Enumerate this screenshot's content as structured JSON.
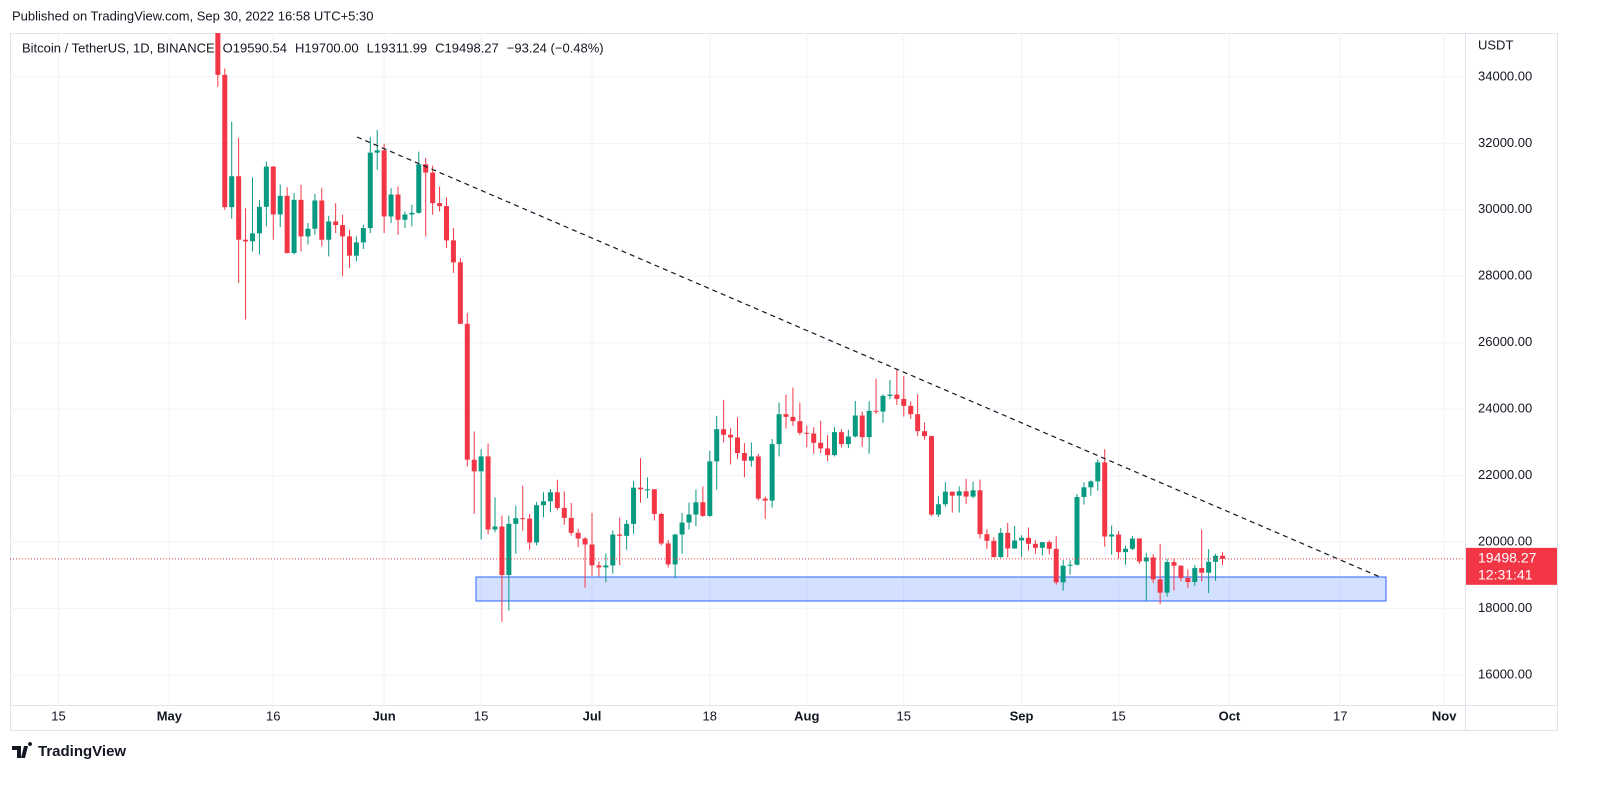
{
  "header": "Published on TradingView.com, Sep 30, 2022 16:58 UTC+5:30",
  "footer": "TradingView",
  "chart_data": {
    "type": "candlestick",
    "legend": {
      "symbol": "Bitcoin / TetherUS, 1D, BINANCE",
      "items": [
        "O",
        "19590.54",
        "H",
        "19700.00",
        "L",
        "19311.99",
        "C",
        "19498.27",
        "−93.24 (−0.48%)"
      ]
    },
    "y_unit": "USDT",
    "countdown": "12:31:41",
    "up_color": "#089981",
    "down_color": "#f23645",
    "xlim": [
      "2022-04-08",
      "2022-11-04"
    ],
    "xticks": [
      {
        "value": "2022-04-15",
        "label": "15"
      },
      {
        "value": "2022-05-01",
        "label": "May"
      },
      {
        "value": "2022-05-16",
        "label": "16"
      },
      {
        "value": "2022-06-01",
        "label": "Jun"
      },
      {
        "value": "2022-06-15",
        "label": "15"
      },
      {
        "value": "2022-07-01",
        "label": "Jul"
      },
      {
        "value": "2022-07-18",
        "label": "18"
      },
      {
        "value": "2022-08-01",
        "label": "Aug"
      },
      {
        "value": "2022-08-15",
        "label": "15"
      },
      {
        "value": "2022-09-01",
        "label": "Sep"
      },
      {
        "value": "2022-09-15",
        "label": "15"
      },
      {
        "value": "2022-10-01",
        "label": "Oct"
      },
      {
        "value": "2022-10-17",
        "label": "17"
      },
      {
        "value": "2022-11-01",
        "label": "Nov"
      }
    ],
    "ylim": [
      15100,
      35320
    ],
    "yticks": [
      {
        "value": 16000,
        "label": "16000.00"
      },
      {
        "value": 18000,
        "label": "18000.00"
      },
      {
        "value": 20000,
        "label": "20000.00"
      },
      {
        "value": 22000,
        "label": "22000.00"
      },
      {
        "value": 24000,
        "label": "24000.00"
      },
      {
        "value": 26000,
        "label": "26000.00"
      },
      {
        "value": 28000,
        "label": "28000.00"
      },
      {
        "value": 30000,
        "label": "30000.00"
      },
      {
        "value": 32000,
        "label": "32000.00"
      },
      {
        "value": 34000,
        "label": "34000.00"
      }
    ],
    "grid": true,
    "x": [
      "2022-05-08",
      "2022-05-09",
      "2022-05-10",
      "2022-05-11",
      "2022-05-12",
      "2022-05-13",
      "2022-05-14",
      "2022-05-15",
      "2022-05-16",
      "2022-05-17",
      "2022-05-18",
      "2022-05-19",
      "2022-05-20",
      "2022-05-21",
      "2022-05-22",
      "2022-05-23",
      "2022-05-24",
      "2022-05-25",
      "2022-05-26",
      "2022-05-27",
      "2022-05-28",
      "2022-05-29",
      "2022-05-30",
      "2022-05-31",
      "2022-06-01",
      "2022-06-02",
      "2022-06-03",
      "2022-06-04",
      "2022-06-05",
      "2022-06-06",
      "2022-06-07",
      "2022-06-08",
      "2022-06-09",
      "2022-06-10",
      "2022-06-11",
      "2022-06-12",
      "2022-06-13",
      "2022-06-14",
      "2022-06-15",
      "2022-06-16",
      "2022-06-17",
      "2022-06-18",
      "2022-06-19",
      "2022-06-20",
      "2022-06-21",
      "2022-06-22",
      "2022-06-23",
      "2022-06-24",
      "2022-06-25",
      "2022-06-26",
      "2022-06-27",
      "2022-06-28",
      "2022-06-29",
      "2022-06-30",
      "2022-07-01",
      "2022-07-02",
      "2022-07-03",
      "2022-07-04",
      "2022-07-05",
      "2022-07-06",
      "2022-07-07",
      "2022-07-08",
      "2022-07-09",
      "2022-07-10",
      "2022-07-11",
      "2022-07-12",
      "2022-07-13",
      "2022-07-14",
      "2022-07-15",
      "2022-07-16",
      "2022-07-17",
      "2022-07-18",
      "2022-07-19",
      "2022-07-20",
      "2022-07-21",
      "2022-07-22",
      "2022-07-23",
      "2022-07-24",
      "2022-07-25",
      "2022-07-26",
      "2022-07-27",
      "2022-07-28",
      "2022-07-29",
      "2022-07-30",
      "2022-07-31",
      "2022-08-01",
      "2022-08-02",
      "2022-08-03",
      "2022-08-04",
      "2022-08-05",
      "2022-08-06",
      "2022-08-07",
      "2022-08-08",
      "2022-08-09",
      "2022-08-10",
      "2022-08-11",
      "2022-08-12",
      "2022-08-13",
      "2022-08-14",
      "2022-08-15",
      "2022-08-16",
      "2022-08-17",
      "2022-08-18",
      "2022-08-19",
      "2022-08-20",
      "2022-08-21",
      "2022-08-22",
      "2022-08-23",
      "2022-08-24",
      "2022-08-25",
      "2022-08-26",
      "2022-08-27",
      "2022-08-28",
      "2022-08-29",
      "2022-08-30",
      "2022-08-31",
      "2022-09-01",
      "2022-09-02",
      "2022-09-03",
      "2022-09-04",
      "2022-09-05",
      "2022-09-06",
      "2022-09-07",
      "2022-09-08",
      "2022-09-09",
      "2022-09-10",
      "2022-09-11",
      "2022-09-12",
      "2022-09-13",
      "2022-09-14",
      "2022-09-15",
      "2022-09-16",
      "2022-09-17",
      "2022-09-18",
      "2022-09-19",
      "2022-09-20",
      "2022-09-21",
      "2022-09-22",
      "2022-09-23",
      "2022-09-24",
      "2022-09-25",
      "2022-09-26",
      "2022-09-27",
      "2022-09-28",
      "2022-09-29",
      "2022-09-30"
    ],
    "open": [
      35470,
      34060,
      30080,
      31010,
      29100,
      29050,
      29290,
      30090,
      31300,
      29860,
      30420,
      28700,
      30300,
      29200,
      29430,
      30280,
      29100,
      29650,
      29540,
      29200,
      28620,
      29020,
      29450,
      31720,
      31790,
      29800,
      30460,
      29700,
      29860,
      29910,
      31370,
      31120,
      30200,
      30110,
      29080,
      28420,
      26570,
      22480,
      22130,
      22580,
      20380,
      20470,
      19010,
      20550,
      20720,
      20710,
      19990,
      21110,
      21230,
      21500,
      21030,
      20730,
      20280,
      20110,
      19930,
      19300,
      19240,
      19300,
      20230,
      20190,
      20550,
      21640,
      21590,
      21590,
      20850,
      19960,
      19330,
      20230,
      20590,
      20830,
      21200,
      20790,
      22430,
      23400,
      23230,
      23150,
      22680,
      22450,
      22580,
      21310,
      21250,
      22950,
      23850,
      23770,
      23640,
      23290,
      23270,
      22990,
      22820,
      22620,
      23310,
      22950,
      23180,
      23810,
      23160,
      23950,
      23930,
      24400,
      24440,
      24310,
      24100,
      23850,
      23340,
      23190,
      20830,
      21140,
      21520,
      21400,
      21530,
      21370,
      21560,
      20240,
      20040,
      19550,
      20280,
      19810,
      20050,
      20130,
      19950,
      19830,
      20000,
      19800,
      18790,
      19290,
      19320,
      21360,
      21650,
      21830,
      22400,
      20170,
      20230,
      19700,
      19800,
      20110,
      19420,
      19540,
      18880,
      18480,
      19400,
      19290,
      18920,
      18800,
      19220,
      19080,
      19410,
      19590.54
    ],
    "high": [
      35500,
      34250,
      32650,
      32170,
      30050,
      30980,
      30300,
      31450,
      31320,
      30760,
      30680,
      30500,
      30750,
      29600,
      30480,
      30650,
      29820,
      30200,
      29850,
      29400,
      29200,
      29550,
      32200,
      32400,
      31990,
      30650,
      30700,
      29950,
      30150,
      31750,
      31560,
      31330,
      30700,
      30380,
      29450,
      28550,
      26890,
      23330,
      22800,
      22970,
      21350,
      20800,
      20800,
      21100,
      21700,
      20850,
      21210,
      21500,
      21600,
      21880,
      21530,
      21180,
      20400,
      20150,
      20880,
      19420,
      19660,
      20350,
      20740,
      20670,
      21840,
      22530,
      21950,
      21600,
      20880,
      20060,
      20250,
      20880,
      21190,
      21580,
      21680,
      22750,
      23800,
      24280,
      23430,
      23760,
      22980,
      23000,
      22660,
      21380,
      23100,
      24200,
      24440,
      24650,
      24200,
      23510,
      23460,
      23650,
      23220,
      23460,
      23400,
      23380,
      24250,
      23930,
      24240,
      24920,
      24450,
      24880,
      25210,
      25000,
      24230,
      24450,
      23600,
      23200,
      21380,
      21800,
      21520,
      21680,
      21900,
      21820,
      21880,
      20390,
      20150,
      20420,
      20580,
      20490,
      20210,
      20440,
      20060,
      20000,
      20060,
      20180,
      19460,
      19450,
      21450,
      21800,
      21860,
      22490,
      22800,
      20500,
      20330,
      19890,
      20190,
      20120,
      19680,
      19640,
      19950,
      19500,
      19500,
      19310,
      19180,
      19310,
      20380,
      19790,
      19650,
      19700
    ],
    "low": [
      33700,
      30000,
      29730,
      27800,
      26700,
      28750,
      28650,
      29500,
      29100,
      29480,
      28690,
      28660,
      28740,
      28960,
      29250,
      28900,
      28600,
      29300,
      28000,
      28250,
      28450,
      28820,
      29300,
      31200,
      29300,
      29600,
      29250,
      29450,
      29500,
      29880,
      29200,
      29850,
      29950,
      28850,
      28100,
      26560,
      22280,
      20850,
      20080,
      20230,
      20300,
      17600,
      17950,
      19650,
      20350,
      19780,
      19900,
      20750,
      20900,
      20970,
      20520,
      20200,
      19850,
      18630,
      18980,
      18970,
      18790,
      19050,
      19310,
      19770,
      20250,
      21190,
      21320,
      20650,
      19900,
      19240,
      18910,
      19650,
      20380,
      20480,
      20760,
      20760,
      21580,
      23000,
      22340,
      22500,
      21950,
      22270,
      21250,
      20700,
      21040,
      22580,
      23420,
      23500,
      23220,
      22850,
      22660,
      22680,
      22440,
      22580,
      22850,
      22830,
      23150,
      22870,
      22660,
      23860,
      23590,
      24300,
      24130,
      23780,
      23710,
      23190,
      23080,
      20780,
      20760,
      21070,
      20890,
      20890,
      21150,
      21320,
      20110,
      19800,
      19540,
      19530,
      19540,
      19800,
      19560,
      19750,
      19650,
      19600,
      19630,
      18720,
      18540,
      19020,
      19300,
      21130,
      21400,
      21550,
      19860,
      19620,
      19500,
      19320,
      19760,
      19340,
      18230,
      18770,
      18130,
      18360,
      18540,
      18820,
      18630,
      18680,
      18820,
      18470,
      18840,
      19311.99
    ],
    "close": [
      34060,
      30080,
      31010,
      29100,
      29050,
      29290,
      30090,
      31300,
      29860,
      30420,
      28700,
      30300,
      29200,
      29430,
      30280,
      29100,
      29650,
      29540,
      29200,
      28620,
      29020,
      29450,
      31720,
      31790,
      29800,
      30460,
      29700,
      29860,
      29910,
      31370,
      31120,
      30200,
      30110,
      29080,
      28420,
      26570,
      22480,
      22130,
      22580,
      20380,
      20470,
      19010,
      20550,
      20720,
      20710,
      19990,
      21110,
      21230,
      21500,
      21030,
      20730,
      20280,
      20110,
      19930,
      19300,
      19240,
      19300,
      20230,
      20190,
      20550,
      21640,
      21590,
      21590,
      20850,
      19960,
      19330,
      20230,
      20590,
      20830,
      21200,
      20790,
      22430,
      23400,
      23230,
      23150,
      22680,
      22450,
      22580,
      21310,
      21250,
      22950,
      23850,
      23770,
      23640,
      23290,
      23270,
      22990,
      22820,
      22620,
      23310,
      22950,
      23180,
      23810,
      23160,
      23950,
      23930,
      24400,
      24440,
      24310,
      24100,
      23850,
      23340,
      23190,
      20830,
      21140,
      21520,
      21400,
      21530,
      21370,
      21560,
      20240,
      20040,
      19550,
      20280,
      19810,
      20050,
      20130,
      19950,
      19830,
      20000,
      19800,
      18790,
      19290,
      19320,
      21360,
      21650,
      21830,
      22400,
      20170,
      20230,
      19700,
      19800,
      20110,
      19420,
      19540,
      18880,
      18480,
      19400,
      19290,
      18920,
      18800,
      19220,
      19080,
      19410,
      19590,
      19498.27
    ]
  }
}
